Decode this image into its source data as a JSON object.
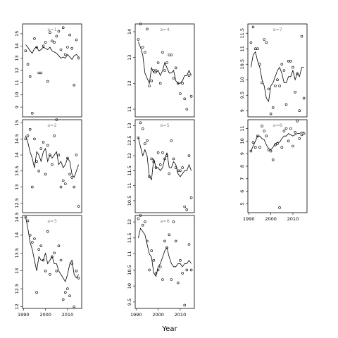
{
  "chart_data": {
    "type": "scatter",
    "xlabel": "Year",
    "x_ticks": [
      1990,
      2000,
      2010
    ],
    "panels": [
      {
        "label": "a=1",
        "ylim": [
          8.2,
          15.8
        ],
        "y_ticks": [
          9,
          10,
          11,
          12,
          13,
          14,
          15
        ],
        "x_ticks": [],
        "x": [
          1991,
          1992,
          1993,
          1994,
          1995,
          1996,
          1997,
          1998,
          1999,
          2000,
          2001,
          2002,
          2003,
          2004,
          2005,
          2006,
          2007,
          2008,
          2009,
          2010,
          2011,
          2012,
          2013,
          2014,
          2015
        ],
        "y": [
          13.6,
          12.5,
          11.5,
          8.5,
          14.6,
          13.9,
          11.8,
          11.8,
          14.0,
          14.3,
          11.1,
          15.1,
          14.4,
          14.3,
          14.8,
          15.2,
          13.7,
          15.5,
          13.3,
          13.9,
          14.9,
          13.8,
          10.8,
          14.5,
          13.0
        ],
        "fit": [
          14.1,
          13.9,
          13.6,
          13.4,
          13.8,
          13.9,
          13.6,
          13.7,
          13.9,
          13.8,
          13.7,
          13.9,
          13.6,
          13.5,
          13.4,
          13.2,
          13.0,
          13.1,
          13.0,
          13.3,
          13.1,
          12.9,
          13.2,
          13.3,
          13.1
        ]
      },
      {
        "label": "a=4",
        "ylim": [
          10.7,
          14.3
        ],
        "y_ticks": [
          11,
          12,
          13,
          14
        ],
        "x_ticks": [],
        "x": [
          1991,
          1992,
          1993,
          1994,
          1995,
          1996,
          1997,
          1998,
          1999,
          2000,
          2001,
          2002,
          2003,
          2004,
          2005,
          2006,
          2007,
          2008,
          2009,
          2010,
          2011,
          2012,
          2013,
          2014,
          2015
        ],
        "y": [
          13.7,
          14.3,
          13.4,
          13.2,
          14.1,
          11.9,
          12.1,
          12.5,
          12.5,
          12.8,
          12.0,
          13.2,
          12.5,
          12.8,
          13.1,
          13.1,
          12.2,
          12.6,
          12.0,
          11.6,
          12.0,
          11.4,
          11.0,
          12.3,
          11.5
        ],
        "fit": [
          13.6,
          13.4,
          13.1,
          12.4,
          12.2,
          12.0,
          12.6,
          12.4,
          12.4,
          12.5,
          12.3,
          12.5,
          12.8,
          12.6,
          12.4,
          12.4,
          12.5,
          12.1,
          12.0,
          12.0,
          12.1,
          12.3,
          12.3,
          12.5,
          12.3
        ]
      },
      {
        "label": "a=7",
        "ylim": [
          8.8,
          11.8
        ],
        "y_ticks": [
          9.0,
          9.5,
          10.0,
          10.5,
          11.0,
          11.5
        ],
        "x_ticks": [],
        "x": [
          1991,
          1992,
          1993,
          1994,
          1995,
          1996,
          1997,
          1998,
          1999,
          2000,
          2001,
          2002,
          2003,
          2004,
          2005,
          2006,
          2007,
          2008,
          2009,
          2010,
          2011,
          2012,
          2013,
          2014,
          2015
        ],
        "y": [
          11.2,
          11.7,
          11.0,
          11.0,
          10.5,
          9.9,
          11.3,
          11.2,
          9.7,
          8.9,
          9.1,
          9.8,
          10.0,
          9.8,
          10.5,
          10.3,
          9.2,
          10.6,
          10.6,
          10.4,
          9.6,
          10.2,
          9.0,
          11.4,
          9.4
        ],
        "fit": [
          10.4,
          10.8,
          10.9,
          10.6,
          10.4,
          10.0,
          9.8,
          9.4,
          9.3,
          9.8,
          9.9,
          10.1,
          10.3,
          10.4,
          10.2,
          9.9,
          9.9,
          10.1,
          10.1,
          10.3,
          10.0,
          10.2,
          10.1,
          10.4,
          10.4
        ]
      },
      {
        "label": "a=2",
        "ylim": [
          12.2,
          15.1
        ],
        "y_ticks": [
          12.5,
          13.0,
          13.5,
          14.0,
          14.5,
          15.0
        ],
        "x_ticks": [],
        "x": [
          1991,
          1992,
          1993,
          1994,
          1995,
          1996,
          1997,
          1998,
          1999,
          2000,
          2001,
          2002,
          2003,
          2004,
          2005,
          2006,
          2007,
          2008,
          2009,
          2010,
          2011,
          2012,
          2013,
          2014,
          2015
        ],
        "y": [
          14.5,
          14.6,
          14.8,
          13.0,
          14.5,
          13.8,
          13.5,
          14.2,
          14.4,
          13.4,
          14.3,
          14.0,
          13.7,
          14.6,
          15.1,
          14.0,
          13.0,
          13.2,
          13.1,
          13.9,
          13.4,
          13.3,
          13.0,
          14.0,
          12.4
        ],
        "fit": [
          14.6,
          14.4,
          14.1,
          13.9,
          13.6,
          14.1,
          14.0,
          13.8,
          14.1,
          14.2,
          13.8,
          14.0,
          13.9,
          14.0,
          14.1,
          13.7,
          13.8,
          13.6,
          13.7,
          13.9,
          13.8,
          13.4,
          13.3,
          13.5,
          13.7
        ]
      },
      {
        "label": "a=5",
        "ylim": [
          10.1,
          13.2
        ],
        "y_ticks": [
          10.5,
          11.0,
          11.5,
          12.0,
          12.5,
          13.0
        ],
        "x_ticks": [],
        "x": [
          1991,
          1992,
          1993,
          1994,
          1995,
          1996,
          1997,
          1998,
          1999,
          2000,
          2001,
          2002,
          2003,
          2004,
          2005,
          2006,
          2007,
          2008,
          2009,
          2010,
          2011,
          2012,
          2013,
          2014,
          2015
        ],
        "y": [
          12.6,
          13.1,
          12.9,
          12.4,
          12.5,
          11.3,
          11.9,
          11.8,
          11.6,
          12.1,
          11.7,
          12.1,
          11.9,
          12.0,
          11.4,
          12.5,
          11.9,
          11.6,
          11.5,
          11.5,
          11.6,
          10.3,
          10.2,
          12.0,
          10.6
        ],
        "fit": [
          12.6,
          12.3,
          12.0,
          12.2,
          12.0,
          11.3,
          11.2,
          11.9,
          11.6,
          11.6,
          11.5,
          11.6,
          11.9,
          12.1,
          11.6,
          11.6,
          11.8,
          11.7,
          11.4,
          11.3,
          11.4,
          11.5,
          11.5,
          11.7,
          11.5
        ]
      },
      {
        "label": "a=8",
        "ylim": [
          4.3,
          11.7
        ],
        "y_ticks": [
          5,
          6,
          7,
          8,
          9,
          10,
          11
        ],
        "x_ticks": [
          1990,
          2000,
          2010
        ],
        "x": [
          1991,
          1992,
          1993,
          1994,
          1995,
          1996,
          1997,
          1998,
          1999,
          2000,
          2001,
          2002,
          2003,
          2004,
          2005,
          2006,
          2007,
          2008,
          2009,
          2010,
          2011,
          2012,
          2013,
          2014,
          2015
        ],
        "y": [
          9.2,
          9.9,
          9.5,
          10.4,
          9.5,
          11.2,
          10.8,
          10.4,
          9.3,
          9.2,
          8.5,
          9.7,
          9.8,
          4.7,
          9.5,
          10.8,
          11.0,
          10.0,
          11.0,
          9.6,
          10.7,
          11.6,
          10.2,
          10.5,
          10.6
        ],
        "fit": [
          9.2,
          9.6,
          10.0,
          10.4,
          10.4,
          10.2,
          10.1,
          9.7,
          9.4,
          9.3,
          9.5,
          9.8,
          9.9,
          9.9,
          10.2,
          10.4,
          10.4,
          10.6,
          10.5,
          10.4,
          10.5,
          10.6,
          10.6,
          10.7,
          10.7
        ]
      },
      {
        "label": "a=3",
        "ylim": [
          11.95,
          14.55
        ],
        "y_ticks": [
          12.0,
          12.5,
          13.0,
          13.5,
          14.0,
          14.5
        ],
        "x_ticks": [
          1990,
          2000,
          2010
        ],
        "x": [
          1991,
          1992,
          1993,
          1994,
          1995,
          1996,
          1997,
          1998,
          1999,
          2000,
          2001,
          2002,
          2003,
          2004,
          2005,
          2006,
          2007,
          2008,
          2009,
          2010,
          2011,
          2012,
          2013,
          2014,
          2015
        ],
        "y": [
          14.5,
          14.4,
          14.0,
          13.8,
          13.9,
          12.4,
          13.6,
          13.7,
          13.3,
          13.0,
          14.1,
          12.9,
          13.4,
          13.5,
          13.0,
          13.7,
          13.3,
          12.2,
          12.4,
          12.5,
          12.3,
          13.2,
          12.0,
          13.0,
          12.8
        ],
        "fit": [
          14.5,
          14.2,
          13.8,
          13.6,
          13.3,
          13.0,
          13.4,
          13.3,
          13.3,
          13.5,
          13.2,
          13.3,
          13.4,
          13.2,
          13.2,
          13.0,
          12.9,
          12.8,
          12.7,
          12.9,
          13.2,
          13.3,
          12.9,
          12.8,
          12.9
        ]
      },
      {
        "label": "a=6",
        "ylim": [
          9.3,
          12.2
        ],
        "y_ticks": [
          9.5,
          10.0,
          10.5,
          11.0,
          11.5,
          12.0
        ],
        "x_ticks": [
          1990,
          2000,
          2010
        ],
        "x": [
          1991,
          1992,
          1993,
          1994,
          1995,
          1996,
          1997,
          1998,
          1999,
          2000,
          2001,
          2002,
          2003,
          2004,
          2005,
          2006,
          2007,
          2008,
          2009,
          2010,
          2011,
          2012,
          2013,
          2014,
          2015
        ],
        "y": [
          12.1,
          12.2,
          11.9,
          12.0,
          11.4,
          10.5,
          11.1,
          10.8,
          10.4,
          10.5,
          10.6,
          10.2,
          11.4,
          11.2,
          11.6,
          10.2,
          12.0,
          11.4,
          10.1,
          10.8,
          10.4,
          9.4,
          10.5,
          11.3,
          10.5
        ],
        "fit": [
          11.5,
          11.8,
          11.7,
          11.6,
          11.3,
          11.0,
          10.9,
          10.4,
          10.3,
          10.6,
          10.7,
          10.9,
          11.1,
          11.2,
          10.9,
          10.7,
          10.6,
          10.6,
          10.7,
          10.7,
          10.6,
          10.7,
          10.7,
          10.8,
          10.7
        ]
      }
    ]
  }
}
